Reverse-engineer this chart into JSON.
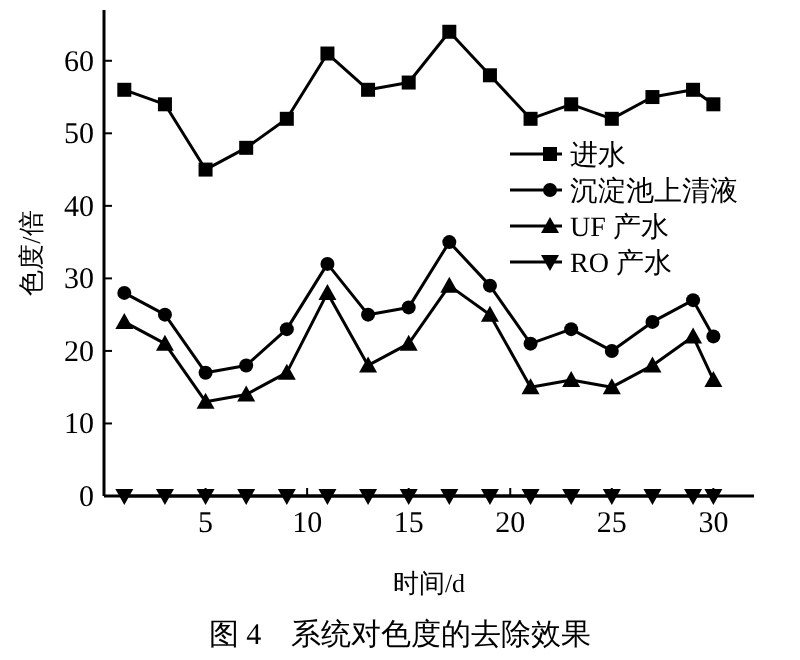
{
  "chart_data": {
    "type": "line",
    "title": "图 4　系统对色度的去除效果",
    "xlabel": "时间/d",
    "ylabel": "色度/倍",
    "x": [
      1,
      3,
      5,
      7,
      9,
      11,
      13,
      15,
      17,
      19,
      21,
      23,
      25,
      27,
      29,
      30
    ],
    "series": [
      {
        "name": "进水",
        "color": "#000000",
        "marker": "square",
        "values": [
          56,
          54,
          45,
          48,
          52,
          61,
          56,
          57,
          64,
          58,
          52,
          54,
          52,
          55,
          56,
          54
        ]
      },
      {
        "name": "沉淀池上清液",
        "color": "#000000",
        "marker": "circle",
        "values": [
          28,
          25,
          17,
          18,
          23,
          32,
          25,
          26,
          35,
          29,
          21,
          23,
          20,
          24,
          27,
          22
        ]
      },
      {
        "name": "UF 产水",
        "color": "#000000",
        "marker": "triangle",
        "values": [
          24,
          21,
          13,
          14,
          17,
          28,
          18,
          21,
          29,
          25,
          15,
          16,
          15,
          18,
          22,
          16
        ]
      },
      {
        "name": "RO 产水",
        "color": "#000000",
        "marker": "triangle-down",
        "values": [
          0,
          0,
          0,
          0,
          0,
          0,
          0,
          0,
          0,
          0,
          0,
          0,
          0,
          0,
          0,
          0
        ]
      }
    ],
    "xlim": [
      0,
      32
    ],
    "ylim": [
      0,
      67
    ],
    "xticks": [
      5,
      10,
      15,
      20,
      25,
      30
    ],
    "yticks": [
      0,
      10,
      20,
      30,
      40,
      50,
      60
    ],
    "grid": false,
    "legend": "right",
    "line_style": "solid"
  }
}
